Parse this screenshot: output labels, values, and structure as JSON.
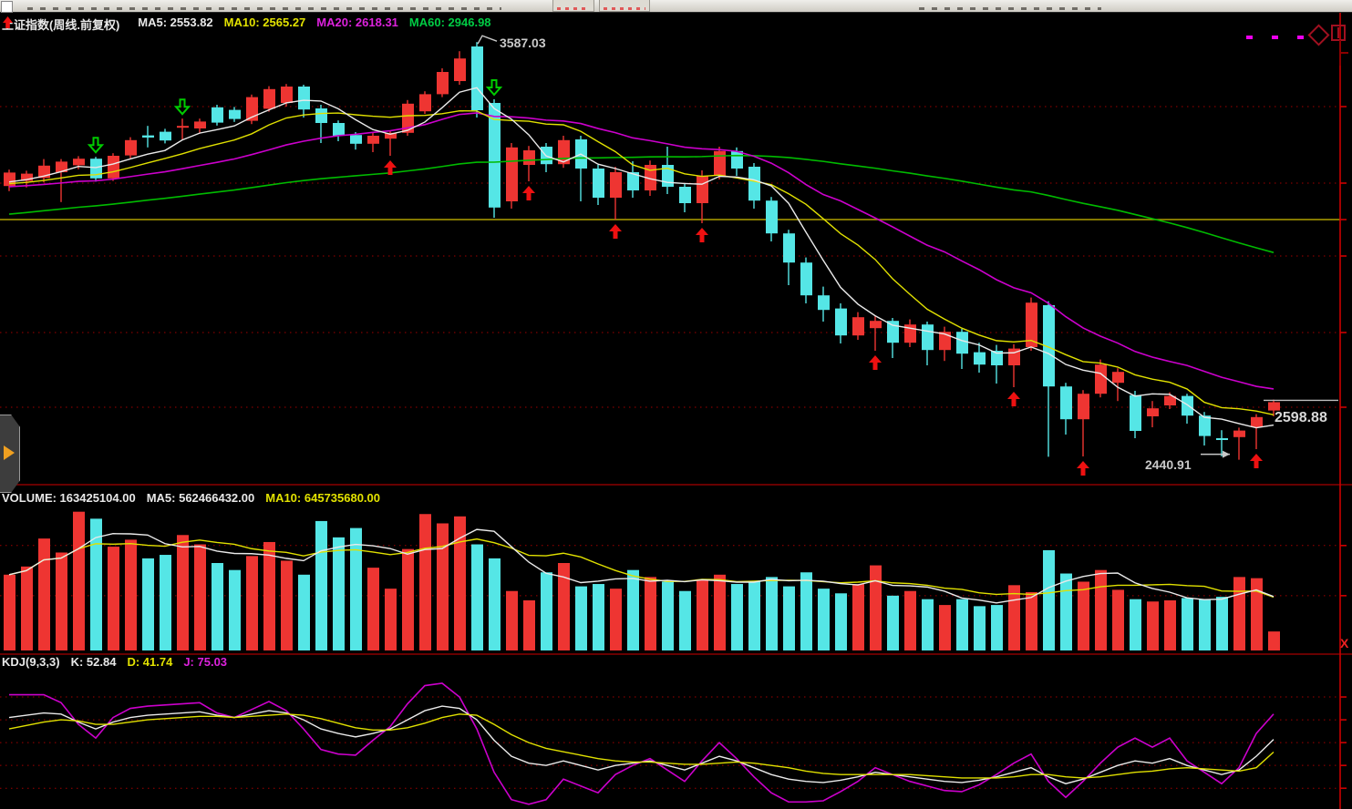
{
  "window": {
    "app": "stock-terminal",
    "toolbar_visible": "cut-off"
  },
  "main_header": {
    "symbol": "上证指数(周线.前复权)",
    "trend_arrow_icon": "up-arrow-icon",
    "ma5": "MA5: 2553.82",
    "ma10": "MA10: 2565.27",
    "ma20": "MA20: 2618.31",
    "ma60": "MA60: 2946.98"
  },
  "volume_header": {
    "volume": "VOLUME: 163425104.00",
    "ma5": "MA5: 562466432.00",
    "ma10": "MA10: 645735680.00"
  },
  "kdj_header": {
    "name": "KDJ(9,3,3)",
    "k": "K: 52.84",
    "d": "D: 41.74",
    "j": "J: 75.03"
  },
  "annotations": {
    "peak": "3587.03",
    "low": "2440.91",
    "last_price": "2598.88",
    "close_button": "X"
  },
  "corner_icons": [
    "magenta-dots-icon",
    "diamond-icon",
    "window-frame-icon"
  ],
  "colors": {
    "up": "#ee3532",
    "down": "#55e6e6",
    "ma5": "#eaeaea",
    "ma10": "#e0e000",
    "ma20": "#cc00cc",
    "ma60": "#00bb00",
    "grid": "#a00000",
    "axis": "#cc0000",
    "separator": "#8b0000",
    "hline": "#b0a000",
    "buy_arrow": "#ee1111",
    "sell_arrow": "#00cc00",
    "annotation": "#c8c8c8"
  },
  "chart_data": {
    "type": "candlestick",
    "title": "上证指数(周线.前复权)",
    "panes": [
      "price",
      "volume",
      "kdj"
    ],
    "price_pane": {
      "ylim": [
        2390,
        3640
      ],
      "gridline_prices": [
        3410,
        3200,
        3000,
        2790,
        2585
      ],
      "hline_price": 3100,
      "last_close": 2598.88,
      "peak_annotation": {
        "index": 27,
        "value": 3587.03
      },
      "low_annotation": {
        "index": 71,
        "value": 2440.91
      },
      "signals_buy": [
        22,
        30,
        35,
        40,
        50,
        58,
        62,
        72
      ],
      "signals_sell": [
        5,
        10,
        28
      ],
      "prehistory_closes": [
        2950,
        2960,
        2955,
        2970,
        2980,
        2975,
        2990,
        3000,
        2995,
        3010,
        3020,
        3015,
        3030,
        3040,
        3035,
        3050,
        3060,
        3055,
        3070,
        3080,
        3075,
        3090,
        3100,
        3095,
        3110,
        3105,
        3118,
        3125,
        3120,
        3132,
        3140,
        3135,
        3148,
        3155,
        3150,
        3160,
        3158,
        3165,
        3170,
        3168,
        3175,
        3172,
        3178,
        3180,
        3176,
        3182,
        3185,
        3180,
        3188,
        3190,
        3186,
        3192,
        3195,
        3190,
        3196,
        3198,
        3194,
        3200,
        3198,
        3195
      ],
      "candles": [
        [
          3192,
          3229,
          3178,
          3237
        ],
        [
          3206,
          3226,
          3188,
          3234
        ],
        [
          3214,
          3248,
          3202,
          3266
        ],
        [
          3230,
          3259,
          3148,
          3266
        ],
        [
          3249,
          3267,
          3238,
          3274
        ],
        [
          3267,
          3213,
          3204,
          3272
        ],
        [
          3213,
          3275,
          3206,
          3282
        ],
        [
          3276,
          3318,
          3268,
          3326
        ],
        [
          3331,
          3325,
          3298,
          3357
        ],
        [
          3341,
          3317,
          3309,
          3349
        ],
        [
          3352,
          3357,
          3320,
          3377
        ],
        [
          3350,
          3369,
          3338,
          3377
        ],
        [
          3408,
          3366,
          3358,
          3415
        ],
        [
          3401,
          3376,
          3368,
          3409
        ],
        [
          3371,
          3436,
          3362,
          3443
        ],
        [
          3404,
          3458,
          3396,
          3466
        ],
        [
          3420,
          3465,
          3410,
          3472
        ],
        [
          3465,
          3402,
          3380,
          3470
        ],
        [
          3405,
          3365,
          3310,
          3415
        ],
        [
          3365,
          3330,
          3315,
          3372
        ],
        [
          3332,
          3308,
          3292,
          3340
        ],
        [
          3308,
          3330,
          3285,
          3338
        ],
        [
          3322,
          3338,
          3275,
          3345
        ],
        [
          3338,
          3418,
          3330,
          3428
        ],
        [
          3397,
          3444,
          3390,
          3452
        ],
        [
          3444,
          3505,
          3436,
          3515
        ],
        [
          3480,
          3542,
          3470,
          3562
        ],
        [
          3575,
          3400,
          3380,
          3587.03
        ],
        [
          3420,
          3133,
          3105,
          3430
        ],
        [
          3150,
          3298,
          3130,
          3310
        ],
        [
          3250,
          3290,
          3205,
          3302
        ],
        [
          3300,
          3252,
          3230,
          3310
        ],
        [
          3252,
          3318,
          3242,
          3330
        ],
        [
          3320,
          3240,
          3150,
          3330
        ],
        [
          3240,
          3160,
          3140,
          3250
        ],
        [
          3160,
          3230,
          3100,
          3245
        ],
        [
          3230,
          3180,
          3160,
          3260
        ],
        [
          3180,
          3250,
          3165,
          3262
        ],
        [
          3250,
          3190,
          3170,
          3300
        ],
        [
          3190,
          3145,
          3120,
          3200
        ],
        [
          3145,
          3220,
          3090,
          3235
        ],
        [
          3220,
          3288,
          3210,
          3300
        ],
        [
          3288,
          3240,
          3220,
          3298
        ],
        [
          3245,
          3152,
          3130,
          3255
        ],
        [
          3152,
          3062,
          3040,
          3162
        ],
        [
          3062,
          2982,
          2920,
          3072
        ],
        [
          2982,
          2892,
          2870,
          2996
        ],
        [
          2892,
          2852,
          2820,
          2916
        ],
        [
          2856,
          2782,
          2760,
          2870
        ],
        [
          2782,
          2832,
          2770,
          2846
        ],
        [
          2802,
          2822,
          2740,
          2836
        ],
        [
          2822,
          2762,
          2720,
          2830
        ],
        [
          2762,
          2812,
          2750,
          2826
        ],
        [
          2812,
          2742,
          2700,
          2820
        ],
        [
          2742,
          2792,
          2712,
          2806
        ],
        [
          2792,
          2732,
          2690,
          2800
        ],
        [
          2736,
          2702,
          2680,
          2762
        ],
        [
          2740,
          2700,
          2650,
          2756
        ],
        [
          2700,
          2746,
          2640,
          2758
        ],
        [
          2750,
          2872,
          2740,
          2886
        ],
        [
          2865,
          2642,
          2449,
          2876
        ],
        [
          2642,
          2552,
          2510,
          2652
        ],
        [
          2552,
          2622,
          2450,
          2632
        ],
        [
          2622,
          2702,
          2612,
          2716
        ],
        [
          2652,
          2682,
          2602,
          2692
        ],
        [
          2618,
          2520,
          2500,
          2630
        ],
        [
          2560,
          2582,
          2530,
          2602
        ],
        [
          2590,
          2616,
          2580,
          2626
        ],
        [
          2616,
          2562,
          2540,
          2622
        ],
        [
          2562,
          2506,
          2480,
          2572
        ],
        [
          2500,
          2496,
          2450,
          2522
        ],
        [
          2503,
          2521,
          2440.91,
          2529
        ],
        [
          2530,
          2558,
          2470,
          2566
        ],
        [
          2576,
          2598.88,
          2560,
          2606
        ]
      ]
    },
    "volume_pane": {
      "unit": "1e8",
      "gridline_levels": [
        9.0,
        4.7
      ],
      "last_value": 1.63425104,
      "values": [
        6.5,
        7.2,
        9.6,
        8.4,
        11.9,
        11.3,
        8.9,
        9.5,
        7.9,
        8.2,
        9.9,
        9.1,
        7.5,
        6.9,
        8.1,
        9.3,
        7.7,
        6.5,
        11.1,
        9.7,
        10.5,
        7.1,
        5.3,
        8.7,
        11.7,
        10.9,
        11.5,
        9.1,
        7.9,
        5.1,
        4.3,
        6.7,
        7.5,
        5.5,
        5.7,
        5.3,
        6.9,
        6.3,
        5.9,
        5.1,
        6.1,
        6.5,
        5.7,
        5.9,
        6.3,
        5.5,
        6.7,
        5.3,
        4.9,
        5.7,
        7.3,
        4.7,
        5.1,
        4.4,
        3.9,
        4.4,
        3.8,
        3.9,
        5.6,
        5.0,
        8.6,
        6.6,
        5.9,
        6.9,
        5.2,
        4.4,
        4.2,
        4.3,
        4.5,
        4.4,
        4.6,
        6.3,
        6.2,
        1.63
      ]
    },
    "kdj_pane": {
      "ylim": [
        -5,
        110
      ],
      "gridline_values": [
        90,
        70,
        50,
        30,
        10
      ],
      "j_formula": "J = 3K - 2D",
      "k": [
        72,
        74,
        76,
        75,
        68,
        62,
        68,
        72,
        74,
        75,
        76,
        77,
        74,
        72,
        75,
        78,
        76,
        70,
        62,
        58,
        55,
        58,
        62,
        70,
        78,
        82,
        80,
        70,
        52,
        38,
        32,
        30,
        34,
        30,
        26,
        30,
        32,
        34,
        30,
        26,
        32,
        38,
        34,
        28,
        22,
        18,
        16,
        15,
        17,
        20,
        24,
        22,
        20,
        18,
        16,
        15,
        17,
        20,
        24,
        28,
        20,
        14,
        18,
        24,
        30,
        34,
        32,
        36,
        30,
        26,
        22,
        26,
        38,
        52.84
      ],
      "d": [
        62,
        65,
        68,
        70,
        69,
        66,
        66,
        68,
        70,
        71,
        72,
        73,
        73,
        72,
        73,
        74,
        75,
        74,
        71,
        67,
        63,
        61,
        61,
        63,
        67,
        72,
        75,
        74,
        66,
        57,
        50,
        45,
        42,
        39,
        36,
        34,
        33,
        33,
        32,
        31,
        31,
        32,
        33,
        32,
        30,
        28,
        25,
        23,
        22,
        22,
        22,
        22,
        22,
        21,
        20,
        19,
        19,
        19,
        20,
        22,
        22,
        20,
        19,
        20,
        22,
        24,
        25,
        27,
        28,
        27,
        26,
        25,
        28,
        41.74
      ]
    }
  }
}
